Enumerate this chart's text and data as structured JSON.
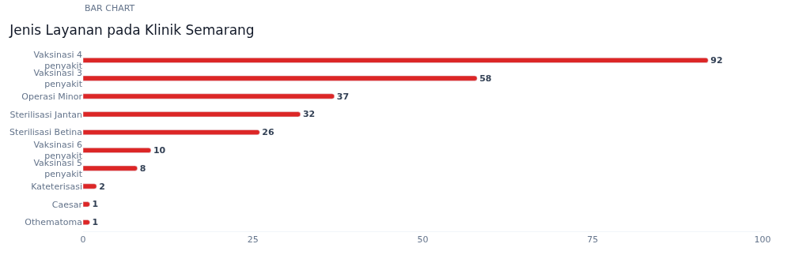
{
  "chart_data": {
    "type": "bar",
    "orientation": "horizontal",
    "subtitle": "BAR CHART",
    "title": "Jenis Layanan pada Klinik Semarang",
    "categories": [
      "Vaksinasi 4 penyakit",
      "Vaksinasi 3 penyakit",
      "Operasi Minor",
      "Sterilisasi Jantan",
      "Sterilisasi Betina",
      "Vaksinasi 6 penyakit",
      "Vaksinasi 5 penyakit",
      "Kateterisasi",
      "Caesar",
      "Othematoma"
    ],
    "values": [
      92,
      58,
      37,
      32,
      26,
      10,
      8,
      2,
      1,
      1
    ],
    "color": "#dc2626",
    "data_labels": true,
    "xlim": [
      0,
      100
    ],
    "xticks": [
      0,
      25,
      50,
      75,
      100
    ]
  }
}
